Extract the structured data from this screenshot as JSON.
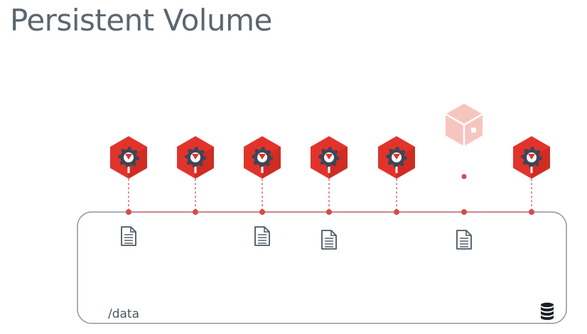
{
  "title": "Persistent Volume",
  "volume": {
    "mount_path": "/data",
    "storage_icon": "database-icon"
  },
  "pods": [
    {
      "state": "running",
      "has_file": true
    },
    {
      "state": "running",
      "has_file": false
    },
    {
      "state": "running",
      "has_file": true
    },
    {
      "state": "running",
      "has_file": true
    },
    {
      "state": "running",
      "has_file": false
    },
    {
      "state": "terminated",
      "has_file": true
    },
    {
      "state": "running",
      "has_file": false
    }
  ],
  "colors": {
    "pod_red": "#e2332b",
    "pod_red_dark": "#b8231c",
    "pod_faded": "#f7c5bf",
    "gear": "#3d4656",
    "connector": "#d64a4a",
    "volume_border": "#8f959b",
    "title": "#5b6670",
    "icon": "#4a5560"
  }
}
